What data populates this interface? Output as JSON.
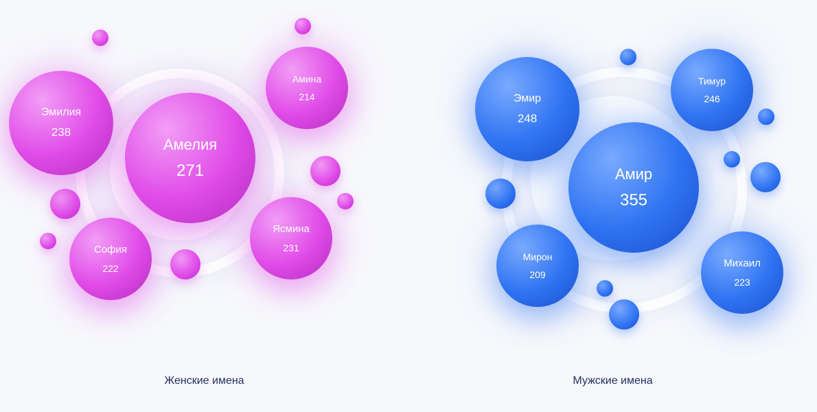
{
  "chart_data": [
    {
      "type": "bubble",
      "caption": "Женские имена",
      "colors": {
        "base": "#e04ae8",
        "light": "#f29df6",
        "dark": "#b22fbd",
        "glow": "rgba(224,74,232,0.35)"
      },
      "names": [
        "Амелия",
        "Эмилия",
        "Ясмина",
        "София",
        "Амина"
      ],
      "values": [
        271,
        238,
        231,
        222,
        214
      ]
    },
    {
      "type": "bubble",
      "caption": "Мужские имена",
      "colors": {
        "base": "#2f73f2",
        "light": "#79aaff",
        "dark": "#1b4fc9",
        "glow": "rgba(47,115,242,0.35)"
      },
      "names": [
        "Амир",
        "Эмир",
        "Тимур",
        "Михаил",
        "Мирон"
      ],
      "values": [
        355,
        248,
        246,
        223,
        209
      ]
    }
  ]
}
